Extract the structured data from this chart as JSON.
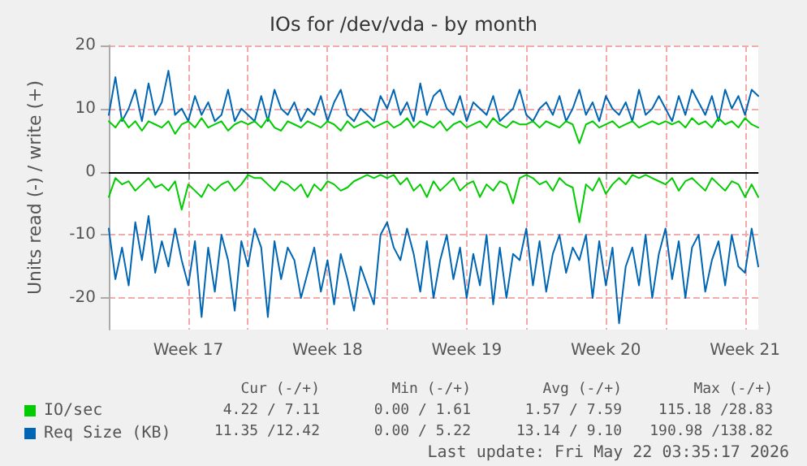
{
  "chart_data": {
    "type": "line",
    "title": "IOs for /dev/vda - by month",
    "ylabel": "Units read (-) / write (+)",
    "x": [
      "2026-04-20T00:00",
      "2026-04-20T08:00",
      "2026-04-20T16:00",
      "2026-04-21T00:00",
      "2026-04-21T08:00",
      "2026-04-21T16:00",
      "2026-04-22T00:00",
      "2026-04-22T08:00",
      "2026-04-22T16:00",
      "2026-04-23T00:00",
      "2026-04-23T08:00",
      "2026-04-23T16:00",
      "2026-04-24T00:00",
      "2026-04-24T08:00",
      "2026-04-24T16:00",
      "2026-04-25T00:00",
      "2026-04-25T08:00",
      "2026-04-25T16:00",
      "2026-04-26T00:00",
      "2026-04-26T08:00",
      "2026-04-26T16:00",
      "2026-04-27T00:00",
      "2026-04-27T08:00",
      "2026-04-27T16:00",
      "2026-04-28T00:00",
      "2026-04-28T08:00",
      "2026-04-28T16:00",
      "2026-04-29T00:00",
      "2026-04-29T08:00",
      "2026-04-29T16:00",
      "2026-04-30T00:00",
      "2026-04-30T08:00",
      "2026-04-30T16:00",
      "2026-05-01T00:00",
      "2026-05-01T08:00",
      "2026-05-01T16:00",
      "2026-05-02T00:00",
      "2026-05-02T08:00",
      "2026-05-02T16:00",
      "2026-05-03T00:00",
      "2026-05-03T08:00",
      "2026-05-03T16:00",
      "2026-05-04T00:00",
      "2026-05-04T08:00",
      "2026-05-04T16:00",
      "2026-05-05T00:00",
      "2026-05-05T08:00",
      "2026-05-05T16:00",
      "2026-05-06T00:00",
      "2026-05-06T08:00",
      "2026-05-06T16:00",
      "2026-05-07T00:00",
      "2026-05-07T08:00",
      "2026-05-07T16:00",
      "2026-05-08T00:00",
      "2026-05-08T08:00",
      "2026-05-08T16:00",
      "2026-05-09T00:00",
      "2026-05-09T08:00",
      "2026-05-09T16:00",
      "2026-05-10T00:00",
      "2026-05-10T08:00",
      "2026-05-10T16:00",
      "2026-05-11T00:00",
      "2026-05-11T08:00",
      "2026-05-11T16:00",
      "2026-05-12T00:00",
      "2026-05-12T08:00",
      "2026-05-12T16:00",
      "2026-05-13T00:00",
      "2026-05-13T08:00",
      "2026-05-13T16:00",
      "2026-05-14T00:00",
      "2026-05-14T08:00",
      "2026-05-14T16:00",
      "2026-05-15T00:00",
      "2026-05-15T08:00",
      "2026-05-15T16:00",
      "2026-05-16T00:00",
      "2026-05-16T08:00",
      "2026-05-16T16:00",
      "2026-05-17T00:00",
      "2026-05-17T08:00",
      "2026-05-17T16:00",
      "2026-05-18T00:00",
      "2026-05-18T08:00",
      "2026-05-18T16:00",
      "2026-05-19T00:00",
      "2026-05-19T08:00",
      "2026-05-19T16:00",
      "2026-05-20T00:00",
      "2026-05-20T08:00",
      "2026-05-20T16:00",
      "2026-05-21T00:00",
      "2026-05-21T08:00",
      "2026-05-21T16:00",
      "2026-05-22T00:00",
      "2026-05-22T08:00",
      "2026-05-22T16:00"
    ],
    "series": [
      {
        "name": "Req Size (KB)",
        "color": "#0066b3",
        "values": [
          9,
          15,
          8,
          10,
          13,
          8,
          14,
          9,
          11,
          16,
          9,
          10,
          8,
          12,
          9,
          11,
          8,
          9,
          13,
          8,
          10,
          9,
          8,
          12,
          8,
          13,
          10,
          9,
          11,
          8,
          10,
          9,
          12,
          8,
          11,
          13,
          9,
          8,
          10,
          9,
          8,
          12,
          10,
          13,
          9,
          11,
          8,
          14,
          9,
          12,
          13,
          10,
          9,
          12,
          8,
          11,
          10,
          9,
          12,
          8,
          9,
          10,
          13,
          9,
          8,
          10,
          11,
          9,
          12,
          8,
          10,
          13,
          9,
          11,
          8,
          12,
          10,
          9,
          11,
          8,
          13,
          9,
          10,
          12,
          10,
          8,
          12,
          9,
          13,
          11,
          9,
          12,
          8,
          13,
          10,
          12,
          9,
          13,
          12
        ]
      },
      {
        "color": "#0066b3",
        "values": [
          -9,
          -17,
          -12,
          -18,
          -8,
          -14,
          -7,
          -16,
          -11,
          -15,
          -9,
          -14,
          -18,
          -11,
          -23,
          -12,
          -19,
          -10,
          -14,
          -22,
          -11,
          -15,
          -9,
          -12,
          -23,
          -11,
          -17,
          -12,
          -14,
          -20,
          -16,
          -12,
          -19,
          -14,
          -21,
          -13,
          -17,
          -22,
          -15,
          -18,
          -21,
          -10,
          -8,
          -12,
          -14,
          -9,
          -13,
          -19,
          -11,
          -20,
          -14,
          -10,
          -17,
          -12,
          -20,
          -13,
          -18,
          -10,
          -21,
          -12,
          -20,
          -13,
          -14,
          -9,
          -18,
          -11,
          -19,
          -13,
          -10,
          -16,
          -12,
          -14,
          -10,
          -20,
          -11,
          -18,
          -12,
          -24,
          -15,
          -12,
          -18,
          -10,
          -20,
          -13,
          -9,
          -17,
          -11,
          -20,
          -12,
          -10,
          -19,
          -14,
          -11,
          -18,
          -10,
          -15,
          -16,
          -9,
          -15
        ]
      },
      {
        "name": "IO/sec",
        "color": "#00cc00",
        "values": [
          8,
          7,
          8.5,
          7,
          8,
          6.5,
          8,
          7.5,
          7,
          8,
          6,
          7.5,
          8,
          7,
          8.5,
          7,
          7.5,
          8,
          6.5,
          7.5,
          8,
          7.5,
          8,
          7,
          8.5,
          7,
          6.5,
          8,
          7.5,
          7,
          8,
          7.5,
          7,
          8,
          7.5,
          6.5,
          8,
          7,
          7.5,
          8,
          7,
          7.5,
          8,
          7,
          7.5,
          8.5,
          7,
          8,
          7.5,
          7,
          8,
          6.5,
          7.5,
          8,
          7,
          7.5,
          8,
          7,
          8.5,
          7.5,
          7,
          8,
          7.5,
          7.5,
          8,
          7,
          8,
          7.5,
          7,
          8,
          7.5,
          4.5,
          7.5,
          8,
          7,
          7.5,
          8,
          7,
          7.5,
          8,
          7,
          7.5,
          8,
          7.5,
          8,
          7.5,
          8,
          7,
          8.5,
          7.5,
          8,
          7,
          8.5,
          7.5,
          8,
          7,
          8.5,
          7.5,
          7
        ]
      },
      {
        "color": "#00cc00",
        "values": [
          -4,
          -1,
          -2,
          -1.5,
          -3,
          -2,
          -1,
          -2.5,
          -2,
          -3,
          -1.5,
          -6,
          -2,
          -3,
          -4,
          -2,
          -3,
          -2,
          -1.5,
          -3,
          -2,
          -0.5,
          -1,
          -1,
          -2,
          -3,
          -1.5,
          -2,
          -3,
          -2,
          -4,
          -2,
          -3,
          -1.5,
          -2,
          -3,
          -2.5,
          -1.5,
          -1,
          -0.5,
          -1,
          -0.5,
          -1,
          -0.5,
          -2,
          -1,
          -3,
          -2,
          -4,
          -1.5,
          -3,
          -2,
          -1,
          -3,
          -2,
          -1.5,
          -4,
          -2,
          -3,
          -1.5,
          -2,
          -5,
          -1,
          -0.5,
          -1,
          -2,
          -1.5,
          -3,
          -1,
          -2,
          -2.5,
          -8,
          -2,
          -3,
          -1,
          -3.5,
          -2,
          -1,
          -2,
          -0.5,
          -1,
          -0.5,
          -1,
          -1.5,
          -2,
          -1,
          -3,
          -1.5,
          -1,
          -2,
          -3,
          -1,
          -2,
          -3,
          -1.5,
          -2,
          -4,
          -2,
          -4
        ]
      }
    ],
    "xlim": [
      "2026-04-20T00:00",
      "2026-05-22T16:00"
    ],
    "xticks": [
      {
        "value": "2026-04-24T00:00",
        "label": "Week 17"
      },
      {
        "value": "2026-04-27T00:00",
        "label": null
      },
      {
        "value": "2026-05-01T00:00",
        "label": "Week 18"
      },
      {
        "value": "2026-05-04T00:00",
        "label": null
      },
      {
        "value": "2026-05-08T00:00",
        "label": "Week 19"
      },
      {
        "value": "2026-05-11T00:00",
        "label": null
      },
      {
        "value": "2026-05-15T00:00",
        "label": "Week 20"
      },
      {
        "value": "2026-05-18T00:00",
        "label": null
      },
      {
        "value": "2026-05-22T00:00",
        "label": "Week 21"
      }
    ],
    "ylim": [
      -25,
      20
    ],
    "yticks": [
      -20,
      -10,
      0,
      10,
      20
    ],
    "ref_lines": [
      {
        "axis": "y",
        "value": 0,
        "color": "#000000",
        "line_style": "solid"
      }
    ],
    "grid": true,
    "legend": "bottom left",
    "marker": "none",
    "line_style": "solid",
    "annotations": [
      "Cur (-/+)",
      "Min (-/+)",
      "Avg (-/+)",
      "Max (-/+)",
      "4.22 / 7.11",
      "0.00 / 1.61",
      "1.57 / 7.59",
      "115.18 /28.83",
      "11.35 /12.42",
      "0.00 / 5.22",
      "13.14 / 9.10",
      "190.98 /138.82",
      "Last update: Fri May 22 03:35:17 2026"
    ]
  }
}
